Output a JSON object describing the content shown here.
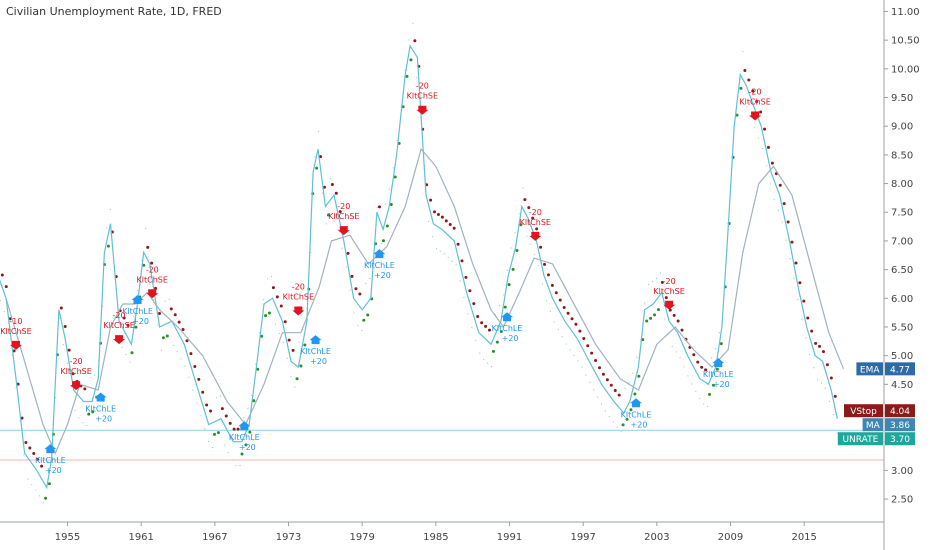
{
  "title": "Civilian Unemployment Rate, 1D, FRED",
  "chart_data": {
    "type": "line",
    "x_ticks": [
      "1955",
      "1961",
      "1967",
      "1973",
      "1979",
      "1985",
      "1991",
      "1997",
      "2003",
      "2009",
      "2015"
    ],
    "x_tick_years": [
      1955,
      1961,
      1967,
      1973,
      1979,
      1985,
      1991,
      1997,
      2003,
      2009,
      2015
    ],
    "y_ticks": [
      "2.50",
      "3.00",
      "3.50",
      "4.00",
      "4.50",
      "5.00",
      "5.50",
      "6.00",
      "6.50",
      "7.00",
      "7.50",
      "8.00",
      "8.50",
      "9.00",
      "9.50",
      "10.00",
      "10.50",
      "11.00"
    ],
    "xlim": [
      1949.5,
      2021.5
    ],
    "ylim": [
      2.1,
      11.2
    ],
    "series": [
      {
        "name": "UNRATE",
        "x": [
          1949.0,
          1950.0,
          1950.8,
          1951.5,
          1952.5,
          1953.3,
          1953.7,
          1954.3,
          1954.8,
          1955.5,
          1956.3,
          1957.0,
          1957.5,
          1958.0,
          1958.5,
          1959.2,
          1959.7,
          1960.2,
          1960.7,
          1961.2,
          1961.7,
          1962.5,
          1963.5,
          1964.5,
          1965.5,
          1966.5,
          1967.5,
          1968.5,
          1969.2,
          1969.8,
          1970.5,
          1971.0,
          1971.7,
          1972.5,
          1973.2,
          1973.8,
          1974.5,
          1975.0,
          1975.4,
          1976.0,
          1976.7,
          1977.5,
          1978.3,
          1979.0,
          1979.7,
          1980.2,
          1980.7,
          1981.2,
          1981.8,
          1982.5,
          1982.9,
          1983.5,
          1984.2,
          1984.8,
          1985.5,
          1986.5,
          1987.5,
          1988.5,
          1989.5,
          1990.3,
          1990.9,
          1991.5,
          1992.0,
          1992.5,
          1993.2,
          1993.8,
          1994.5,
          1995.5,
          1996.5,
          1997.5,
          1998.5,
          1999.5,
          2000.3,
          2000.8,
          2001.5,
          2002.0,
          2002.7,
          2003.4,
          2004.0,
          2004.7,
          2005.5,
          2006.5,
          2007.2,
          2007.8,
          2008.3,
          2008.8,
          2009.3,
          2009.8,
          2010.3,
          2010.8,
          2011.5,
          2012.3,
          2013.0,
          2013.8,
          2014.5,
          2015.2,
          2015.9,
          2016.5,
          2017.2,
          2017.7
        ],
        "y": [
          6.6,
          6.0,
          4.6,
          3.3,
          3.0,
          2.7,
          3.2,
          5.8,
          5.3,
          4.4,
          4.2,
          4.2,
          4.6,
          6.8,
          7.3,
          5.6,
          5.4,
          5.2,
          5.9,
          6.8,
          6.6,
          5.5,
          5.6,
          5.2,
          4.5,
          3.8,
          3.9,
          3.5,
          3.5,
          3.8,
          5.0,
          5.9,
          6.0,
          5.6,
          4.9,
          4.8,
          5.6,
          8.2,
          8.6,
          7.6,
          7.8,
          7.0,
          6.0,
          5.8,
          6.0,
          7.5,
          7.2,
          7.6,
          8.5,
          9.9,
          10.4,
          10.2,
          7.8,
          7.3,
          7.2,
          7.0,
          6.1,
          5.4,
          5.2,
          5.6,
          6.4,
          6.9,
          7.6,
          7.4,
          7.0,
          6.4,
          6.0,
          5.6,
          5.3,
          4.9,
          4.5,
          4.2,
          4.0,
          4.2,
          4.8,
          5.8,
          5.9,
          6.1,
          5.6,
          5.4,
          5.0,
          4.6,
          4.5,
          4.8,
          5.5,
          7.2,
          9.0,
          9.9,
          9.7,
          9.4,
          9.0,
          8.2,
          7.8,
          7.0,
          6.2,
          5.5,
          5.0,
          4.9,
          4.4,
          3.9
        ]
      },
      {
        "name": "EMA",
        "x": [
          1950.0,
          1951.5,
          1953.0,
          1954.0,
          1955.0,
          1956.0,
          1957.5,
          1958.5,
          1959.5,
          1960.5,
          1961.5,
          1962.5,
          1964.0,
          1966.0,
          1968.0,
          1969.5,
          1971.0,
          1972.5,
          1974.0,
          1975.5,
          1976.5,
          1978.0,
          1979.5,
          1981.0,
          1982.5,
          1983.8,
          1985.0,
          1986.5,
          1988.0,
          1989.5,
          1990.5,
          1991.8,
          1993.0,
          1994.5,
          1996.0,
          1998.0,
          2000.0,
          2001.5,
          2003.0,
          2004.5,
          2006.0,
          2007.5,
          2008.8,
          2010.0,
          2011.3,
          2012.5,
          2014.0,
          2015.5,
          2017.0,
          2018.2
        ],
        "y": [
          6.0,
          4.9,
          3.8,
          3.3,
          3.8,
          4.5,
          4.4,
          5.5,
          5.9,
          5.9,
          6.1,
          5.8,
          5.5,
          5.0,
          4.2,
          3.8,
          4.5,
          5.4,
          5.4,
          6.2,
          7.0,
          7.1,
          6.6,
          6.9,
          7.6,
          8.6,
          8.3,
          7.6,
          6.6,
          5.8,
          5.5,
          6.1,
          6.7,
          6.6,
          6.0,
          5.2,
          4.6,
          4.4,
          5.2,
          5.5,
          5.1,
          4.8,
          5.1,
          6.8,
          8.0,
          8.3,
          7.8,
          6.6,
          5.4,
          4.77
        ]
      }
    ],
    "signals": [
      {
        "type": "short",
        "x": 1950.8,
        "y": 5.1,
        "lines": [
          "-10",
          "KltChSE"
        ]
      },
      {
        "type": "long",
        "x": 1953.6,
        "y": 3.3,
        "lines": [
          "KltChLE",
          "+20"
        ]
      },
      {
        "type": "short",
        "x": 1955.7,
        "y": 4.4,
        "lines": [
          "-20",
          "KltChSE"
        ]
      },
      {
        "type": "long",
        "x": 1957.7,
        "y": 4.2,
        "lines": [
          "KltChLE",
          "+20"
        ]
      },
      {
        "type": "short",
        "x": 1959.2,
        "y": 5.2,
        "lines": [
          "-20",
          "KltChSE"
        ]
      },
      {
        "type": "long",
        "x": 1960.7,
        "y": 5.9,
        "lines": [
          "KltChLE",
          "+20"
        ]
      },
      {
        "type": "short",
        "x": 1961.9,
        "y": 6.0,
        "lines": [
          "-20",
          "KltChSE"
        ]
      },
      {
        "type": "long",
        "x": 1969.4,
        "y": 3.7,
        "lines": [
          "KltChLE",
          "+20"
        ]
      },
      {
        "type": "short",
        "x": 1973.8,
        "y": 5.7,
        "lines": [
          "-20",
          "KltChSE"
        ]
      },
      {
        "type": "long",
        "x": 1975.2,
        "y": 5.2,
        "lines": [
          "KltChLE",
          "+20"
        ]
      },
      {
        "type": "short",
        "x": 1977.5,
        "y": 7.1,
        "lines": [
          "-20",
          "KltChSE"
        ]
      },
      {
        "type": "long",
        "x": 1980.4,
        "y": 6.7,
        "lines": [
          "KltChLE",
          "+20"
        ]
      },
      {
        "type": "short",
        "x": 1983.9,
        "y": 9.2,
        "lines": [
          "-20",
          "KltChSE"
        ]
      },
      {
        "type": "long",
        "x": 1990.8,
        "y": 5.6,
        "lines": [
          "KltChLE",
          "+20"
        ]
      },
      {
        "type": "short",
        "x": 1993.1,
        "y": 7.0,
        "lines": [
          "-20",
          "KltChSE"
        ]
      },
      {
        "type": "long",
        "x": 2001.3,
        "y": 4.1,
        "lines": [
          "KltChLE",
          "+20"
        ]
      },
      {
        "type": "short",
        "x": 2004.0,
        "y": 5.8,
        "lines": [
          "-20",
          "KltChSE"
        ]
      },
      {
        "type": "long",
        "x": 2008.0,
        "y": 4.8,
        "lines": [
          "KltChLE",
          "+20"
        ]
      },
      {
        "type": "short",
        "x": 2011.0,
        "y": 9.1,
        "lines": [
          "-20",
          "KltChSE"
        ]
      }
    ],
    "price_badges": [
      {
        "name": "EMA",
        "value": "4.77",
        "y": 4.77,
        "color": "#2e6aa6"
      },
      {
        "name": "VStop",
        "value": "4.04",
        "y": 4.04,
        "color": "#8b1a1a"
      },
      {
        "name": "MA",
        "value": "3.86",
        "y": 3.86,
        "color": "#3f86b5"
      },
      {
        "name": "UNRATE",
        "value": "3.70",
        "y": 3.7,
        "color": "#20a69a"
      }
    ],
    "horizontal_lines": [
      {
        "y": 3.7,
        "color": "#8fd0e6"
      },
      {
        "y": 3.18,
        "color": "#f2b5ae"
      }
    ],
    "colors": {
      "price_line": "#5fc0d6",
      "ema_line": "#9fb3bf",
      "stop_up": "#2a8f2a",
      "stop_down": "#8b1a1a",
      "long_signal": "#2196f3",
      "short_signal": "#e0141e"
    }
  }
}
